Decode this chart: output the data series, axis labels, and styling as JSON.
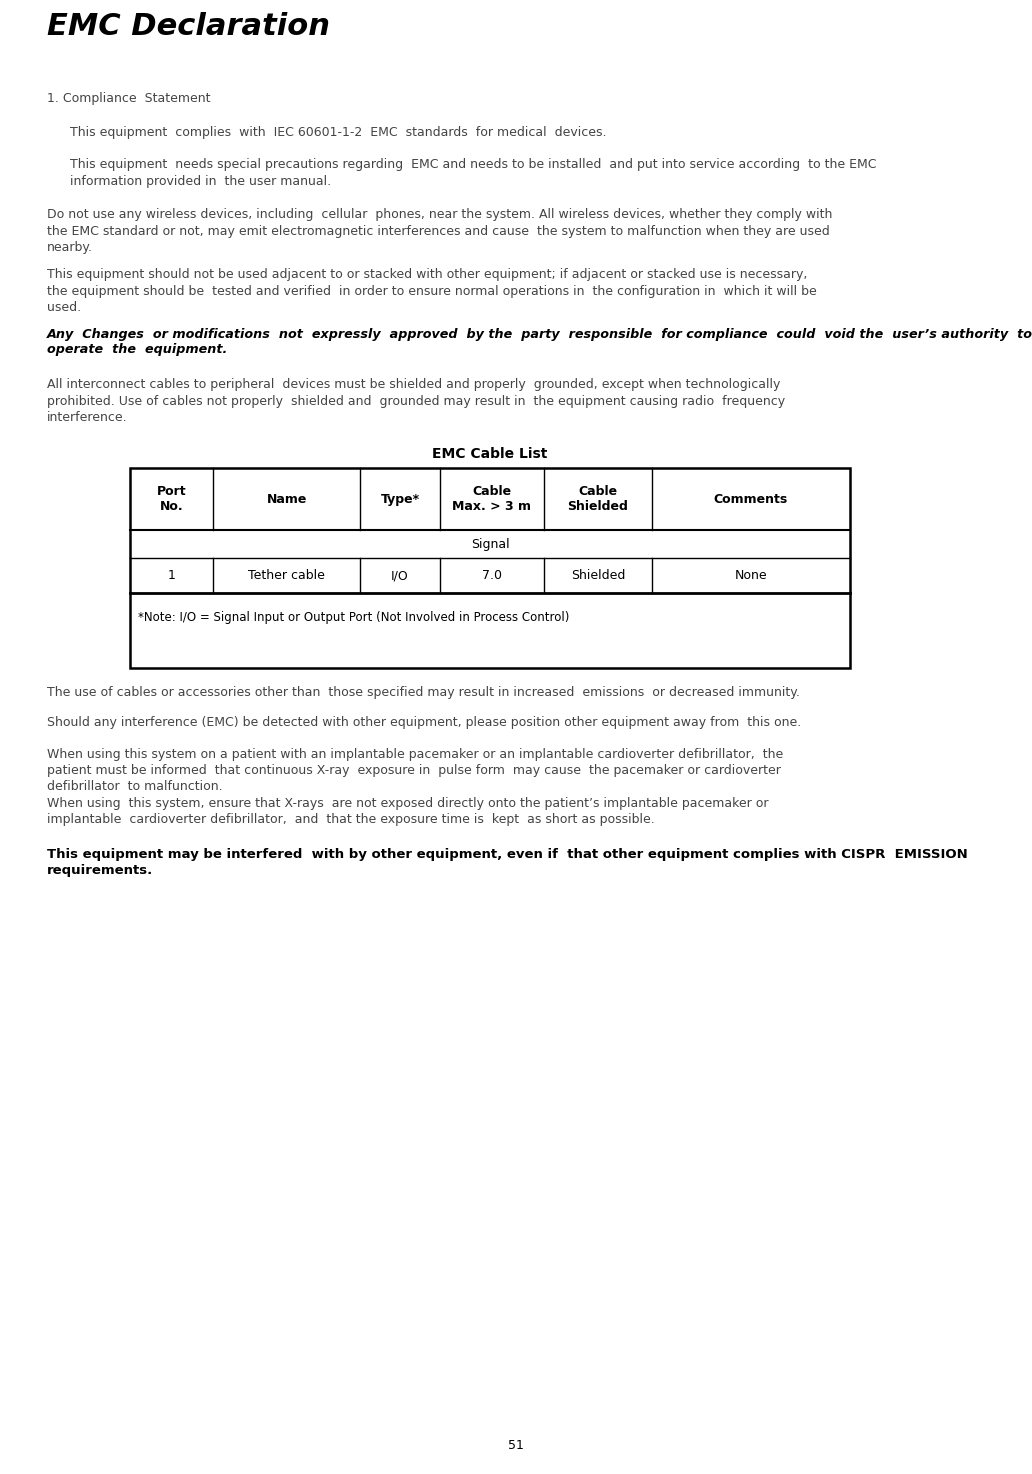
{
  "title": "EMC Declaration",
  "page_number": "51",
  "bg": "#ffffff",
  "section_heading": "1. Compliance  Statement",
  "para1": "This equipment  complies  with  IEC 60601-1-2  EMC  standards  for medical  devices.",
  "para2": "This equipment  needs special precautions regarding  EMC and needs to be installed  and put into service according  to the EMC\ninformation provided in  the user manual.",
  "para3": "Do not use any wireless devices, including  cellular  phones, near the system. All wireless devices, whether they comply with\nthe EMC standard or not, may emit electromagnetic interferences and cause  the system to malfunction when they are used\nnearby.",
  "para4": "This equipment should not be used adjacent to or stacked with other equipment; if adjacent or stacked use is necessary,\nthe equipment should be  tested and verified  in order to ensure normal operations in  the configuration in  which it will be\nused.",
  "para5_line1": "Any  Changes  or modifications  not  expressly  approved  by the  party  responsible  for compliance  could  void the  user’s authority  to",
  "para5_line2": "operate  the  equipment.",
  "para6": "All interconnect cables to peripheral  devices must be shielded and properly  grounded, except when technologically\nprohibited. Use of cables not properly  shielded and  grounded may result in  the equipment causing radio  frequency\ninterference.",
  "table_title": "EMC Cable List",
  "table_headers": [
    "Port\nNo.",
    "Name",
    "Type*",
    "Cable\nMax. > 3 m",
    "Cable\nShielded",
    "Comments"
  ],
  "table_subheader": "Signal",
  "table_row": [
    "1",
    "Tether cable",
    "I/O",
    "7.0",
    "Shielded",
    "None"
  ],
  "table_note": "*Note: I/O = Signal Input or Output Port (Not Involved in Process Control)",
  "post1": "The use of cables or accessories other than  those specified may result in increased  emissions  or decreased immunity.",
  "post2": "Should any interference (EMC) be detected with other equipment, please position other equipment away from  this one.",
  "post3": "When using this system on a patient with an implantable pacemaker or an implantable cardioverter defibrillator,  the\npatient must be informed  that continuous X-ray  exposure in  pulse form  may cause  the pacemaker or cardioverter\ndefibrillator  to malfunction.\nWhen using  this system, ensure that X-rays  are not exposed directly onto the patient’s implantable pacemaker or\nimplantable  cardioverter defibrillator,  and  that the exposure time is  kept  as short as possible.",
  "post4_line1": "This equipment may be interfered  with by other equipment, even if  that other equipment complies with CISPR  EMISSION",
  "post4_line2": "requirements."
}
